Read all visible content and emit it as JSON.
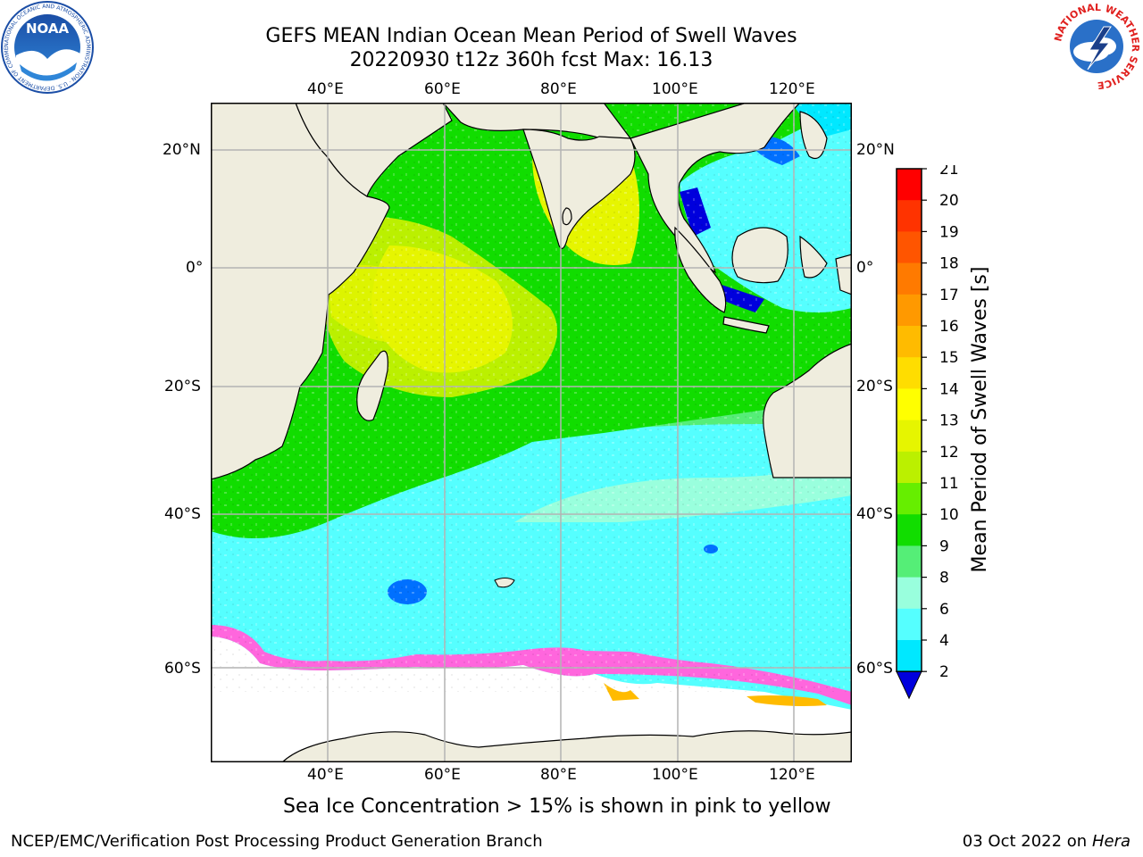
{
  "title": {
    "line1": "GEFS MEAN Indian Ocean Mean Period of Swell Waves",
    "line2": "20220930 t12z 360h fcst   Max: 16.13"
  },
  "map": {
    "top_lon_labels": [
      "40°E",
      "60°E",
      "80°E",
      "100°E",
      "120°E"
    ],
    "bottom_lon_labels": [
      "40°E",
      "60°E",
      "80°E",
      "100°E",
      "120°E"
    ],
    "left_lat_labels": [
      "20°N",
      "0°",
      "20°S",
      "40°S",
      "60°S"
    ],
    "right_lat_labels": [
      "20°N",
      "0°",
      "20°S",
      "40°S",
      "60°S"
    ],
    "colors": {
      "land": "#efedde",
      "grid": "#b4b4b4",
      "coast": "#000000"
    }
  },
  "colorbar": {
    "label": "Mean Period of Swell Waves [s]",
    "ticks": [
      "21",
      "20",
      "19",
      "18",
      "17",
      "16",
      "15",
      "14",
      "13",
      "12",
      "11",
      "10",
      "9",
      "8",
      "6",
      "4",
      "2"
    ],
    "colors": [
      "#ff0000",
      "#ff3300",
      "#ff5500",
      "#ff7a00",
      "#ff9900",
      "#ffbb00",
      "#ffdd00",
      "#ffff00",
      "#e6f500",
      "#bbf000",
      "#66ee00",
      "#11dd00",
      "#55ee77",
      "#99ffdd",
      "#55ffff",
      "#00e8ff",
      "#0070ff",
      "#0000dd"
    ],
    "min_value": 2,
    "max_value": 21,
    "extend": "min"
  },
  "caption": "Sea Ice Concentration > 15% is shown in pink to yellow",
  "footer": {
    "left": "NCEP/EMC/Verification Post Processing Product Generation Branch",
    "right_date": "03 Oct 2022 on ",
    "right_host": "Hera"
  },
  "logos": {
    "noaa": "NOAA",
    "nws": "NATIONAL WEATHER SERVICE",
    "noaa_ring": "NATIONAL OCEANIC AND ATMOSPHERIC ADMINISTRATION · U.S. DEPARTMENT OF COMMERCE"
  }
}
